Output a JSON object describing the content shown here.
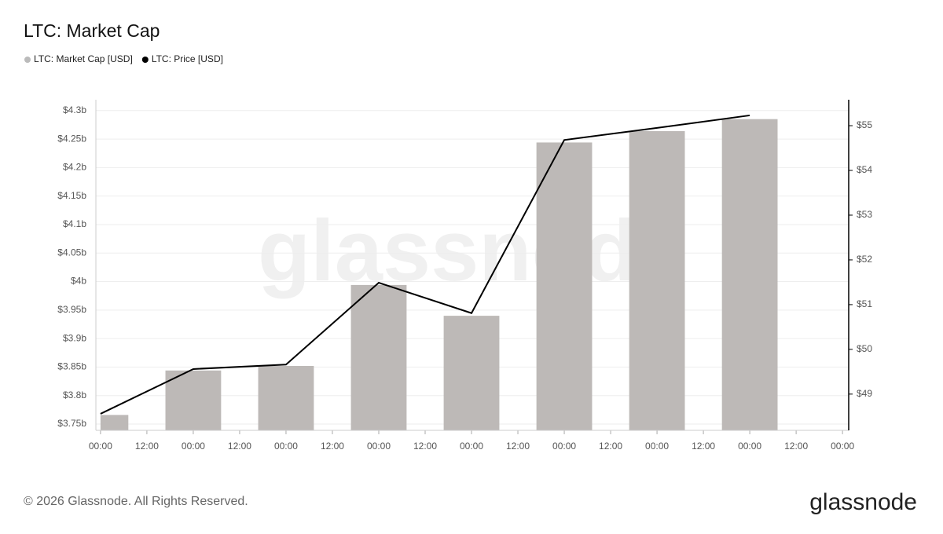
{
  "chart_data": {
    "type": "bar-line",
    "title": "LTC: Market Cap",
    "x": [
      0,
      24,
      48,
      72,
      96,
      120,
      144,
      168
    ],
    "xlim": [
      -1.2,
      193.6
    ],
    "xticks": [
      {
        "value": 0,
        "label": "00:00"
      },
      {
        "value": 12,
        "label": "12:00"
      },
      {
        "value": 24,
        "label": "00:00"
      },
      {
        "value": 36,
        "label": "12:00"
      },
      {
        "value": 48,
        "label": "00:00"
      },
      {
        "value": 60,
        "label": "12:00"
      },
      {
        "value": 72,
        "label": "00:00"
      },
      {
        "value": 84,
        "label": "12:00"
      },
      {
        "value": 96,
        "label": "00:00"
      },
      {
        "value": 108,
        "label": "12:00"
      },
      {
        "value": 120,
        "label": "00:00"
      },
      {
        "value": 132,
        "label": "12:00"
      },
      {
        "value": 144,
        "label": "00:00"
      },
      {
        "value": 156,
        "label": "12:00"
      },
      {
        "value": 168,
        "label": "00:00"
      },
      {
        "value": 180,
        "label": "12:00"
      },
      {
        "value": 192,
        "label": "00:00"
      }
    ],
    "ylim": [
      3739000000,
      4319000000
    ],
    "yticks": [
      {
        "value": 3750000000,
        "label": "$3.75b"
      },
      {
        "value": 3800000000,
        "label": "$3.8b"
      },
      {
        "value": 3850000000,
        "label": "$3.85b"
      },
      {
        "value": 3900000000,
        "label": "$3.9b"
      },
      {
        "value": 3950000000,
        "label": "$3.95b"
      },
      {
        "value": 4000000000,
        "label": "$4b"
      },
      {
        "value": 4050000000,
        "label": "$4.05b"
      },
      {
        "value": 4100000000,
        "label": "$4.1b"
      },
      {
        "value": 4150000000,
        "label": "$4.15b"
      },
      {
        "value": 4200000000,
        "label": "$4.2b"
      },
      {
        "value": 4250000000,
        "label": "$4.25b"
      },
      {
        "value": 4300000000,
        "label": "$4.3b"
      }
    ],
    "y2lim": [
      48.19,
      55.58
    ],
    "y2ticks": [
      {
        "value": 49,
        "label": "$49"
      },
      {
        "value": 50,
        "label": "$50"
      },
      {
        "value": 51,
        "label": "$51"
      },
      {
        "value": 52,
        "label": "$52"
      },
      {
        "value": 53,
        "label": "$53"
      },
      {
        "value": 54,
        "label": "$54"
      },
      {
        "value": 55,
        "label": "$55"
      }
    ],
    "grid": true,
    "series": [
      {
        "name": "LTC: Market Cap [USD]",
        "type": "bar",
        "color": "#bdb9b7",
        "values": [
          3766000000,
          3844000000,
          3852000000,
          3994000000,
          3940000000,
          4244000000,
          4264000000,
          4285000000
        ]
      },
      {
        "name": "LTC: Price [USD]",
        "type": "line",
        "axis": "y2",
        "color": "#000000",
        "values": [
          48.56,
          49.56,
          49.66,
          51.49,
          50.81,
          54.68,
          54.95,
          55.23
        ]
      }
    ]
  },
  "watermark": "glassnode",
  "footer": {
    "copyright": "© 2026 Glassnode. All Rights Reserved.",
    "logo": "glassnode"
  }
}
